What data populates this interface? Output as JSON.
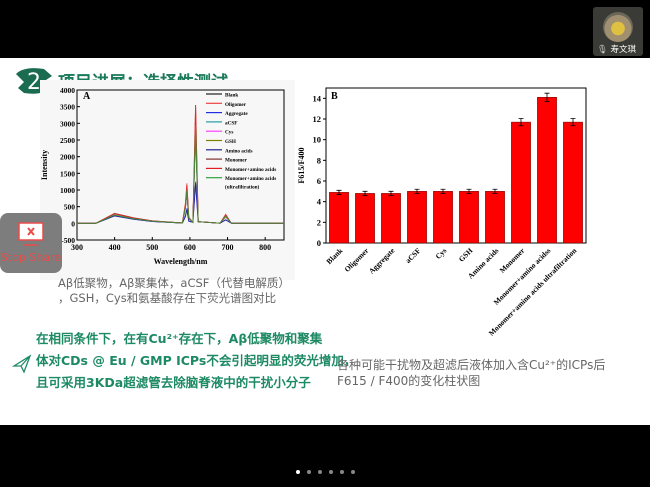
{
  "slide": {
    "section_number": "2",
    "title": "项目进展：选择性测试",
    "caption_a_line1": "Aβ低聚物，Aβ聚集体，aCSF（代替电解质）",
    "caption_a_line2": "，GSH，Cys和氨基酸存在下荧光谱图对比",
    "conclusion_line1": "在相同条件下，在有Cu²⁺存在下，Aβ低聚物和聚集",
    "conclusion_line2": "体对CDs @ Eu / GMP ICPs不会引起明显的荧光增加，",
    "conclusion_line3": "且可采用3KDa超滤管去除脑脊液中的干扰小分子",
    "caption_b_line1": "各种可能干扰物及超滤后液体加入含Cu²⁺的ICPs后",
    "caption_b_line2": "F615 / F400的变化柱状图"
  },
  "stop_share": {
    "label": "Stop Share",
    "icon": "screen-stop-icon"
  },
  "participant": {
    "name": "寿文琪",
    "icon": "microphone-icon"
  },
  "pager": {
    "count": 6,
    "active": 0
  },
  "chart_data": [
    {
      "type": "line",
      "panel_label": "A",
      "xlabel": "Wavelength/nm",
      "ylabel": "Intensity",
      "xlim": [
        300,
        850
      ],
      "ylim": [
        -500,
        4000
      ],
      "xticks": [
        300,
        400,
        500,
        600,
        700,
        800
      ],
      "yticks": [
        -500,
        0,
        500,
        1000,
        1500,
        2000,
        2500,
        3000,
        3500,
        4000
      ],
      "legend_position": "top-right",
      "x": [
        300,
        350,
        400,
        450,
        500,
        580,
        588,
        592,
        597,
        608,
        615,
        622,
        680,
        695,
        710,
        850
      ],
      "series": [
        {
          "name": "Blank",
          "color": "#222222",
          "values": [
            0,
            0,
            230,
            127,
            58,
            10,
            450,
            900,
            135,
            30,
            2700,
            50,
            5,
            200,
            5,
            0
          ]
        },
        {
          "name": "Oligomer",
          "color": "#f04040",
          "values": [
            0,
            0,
            280,
            154,
            70,
            10,
            600,
            1200,
            180,
            30,
            3550,
            50,
            5,
            270,
            5,
            0
          ]
        },
        {
          "name": "Aggregate",
          "color": "#2030e0",
          "values": [
            0,
            0,
            220,
            121,
            55,
            10,
            225,
            450,
            68,
            30,
            1250,
            50,
            5,
            110,
            5,
            0
          ]
        },
        {
          "name": "aCSF",
          "color": "#20a0a0",
          "values": [
            0,
            0,
            240,
            132,
            60,
            10,
            475,
            950,
            143,
            30,
            2900,
            50,
            5,
            200,
            5,
            0
          ]
        },
        {
          "name": "Cys",
          "color": "#ff40ff",
          "values": [
            0,
            0,
            240,
            132,
            60,
            10,
            475,
            950,
            143,
            30,
            2900,
            50,
            5,
            200,
            5,
            0
          ]
        },
        {
          "name": "GSH",
          "color": "#808000",
          "values": [
            0,
            0,
            240,
            132,
            60,
            10,
            475,
            950,
            143,
            30,
            2900,
            50,
            5,
            200,
            5,
            0
          ]
        },
        {
          "name": "Amino acids",
          "color": "#202090",
          "values": [
            0,
            0,
            230,
            127,
            58,
            10,
            200,
            400,
            60,
            30,
            1200,
            50,
            5,
            100,
            5,
            0
          ]
        },
        {
          "name": "Monomer",
          "color": "#803030",
          "values": [
            0,
            0,
            300,
            165,
            75,
            10,
            500,
            1000,
            150,
            30,
            3000,
            50,
            5,
            230,
            5,
            0
          ]
        },
        {
          "name": "Monomer+amino acids",
          "color": "#e02020",
          "values": [
            0,
            0,
            290,
            160,
            73,
            10,
            575,
            1150,
            173,
            30,
            3550,
            50,
            5,
            260,
            5,
            0
          ]
        },
        {
          "name": "Monomer+amino acids (ultrafiltration)",
          "color": "#30a040",
          "values": [
            0,
            0,
            250,
            138,
            63,
            10,
            500,
            1000,
            150,
            30,
            2950,
            50,
            5,
            220,
            5,
            0
          ]
        }
      ]
    },
    {
      "type": "bar",
      "panel_label": "B",
      "ylabel": "F615/F400",
      "ylim": [
        0,
        15
      ],
      "yticks": [
        0,
        2,
        4,
        6,
        8,
        10,
        12,
        14
      ],
      "bar_color": "#ff0000",
      "categories": [
        "Blank",
        "Oligomer",
        "Aggregate",
        "aCSF",
        "Cys",
        "GSH",
        "Amino acids",
        "Monomer",
        "Monomer+amino acidss",
        "Monomer+amino acids ultrafiltration"
      ],
      "values": [
        4.9,
        4.8,
        4.8,
        5.0,
        5.0,
        5.0,
        5.0,
        11.7,
        14.1,
        11.7
      ],
      "errors": [
        0.2,
        0.2,
        0.2,
        0.2,
        0.2,
        0.2,
        0.2,
        0.35,
        0.4,
        0.35
      ]
    }
  ]
}
